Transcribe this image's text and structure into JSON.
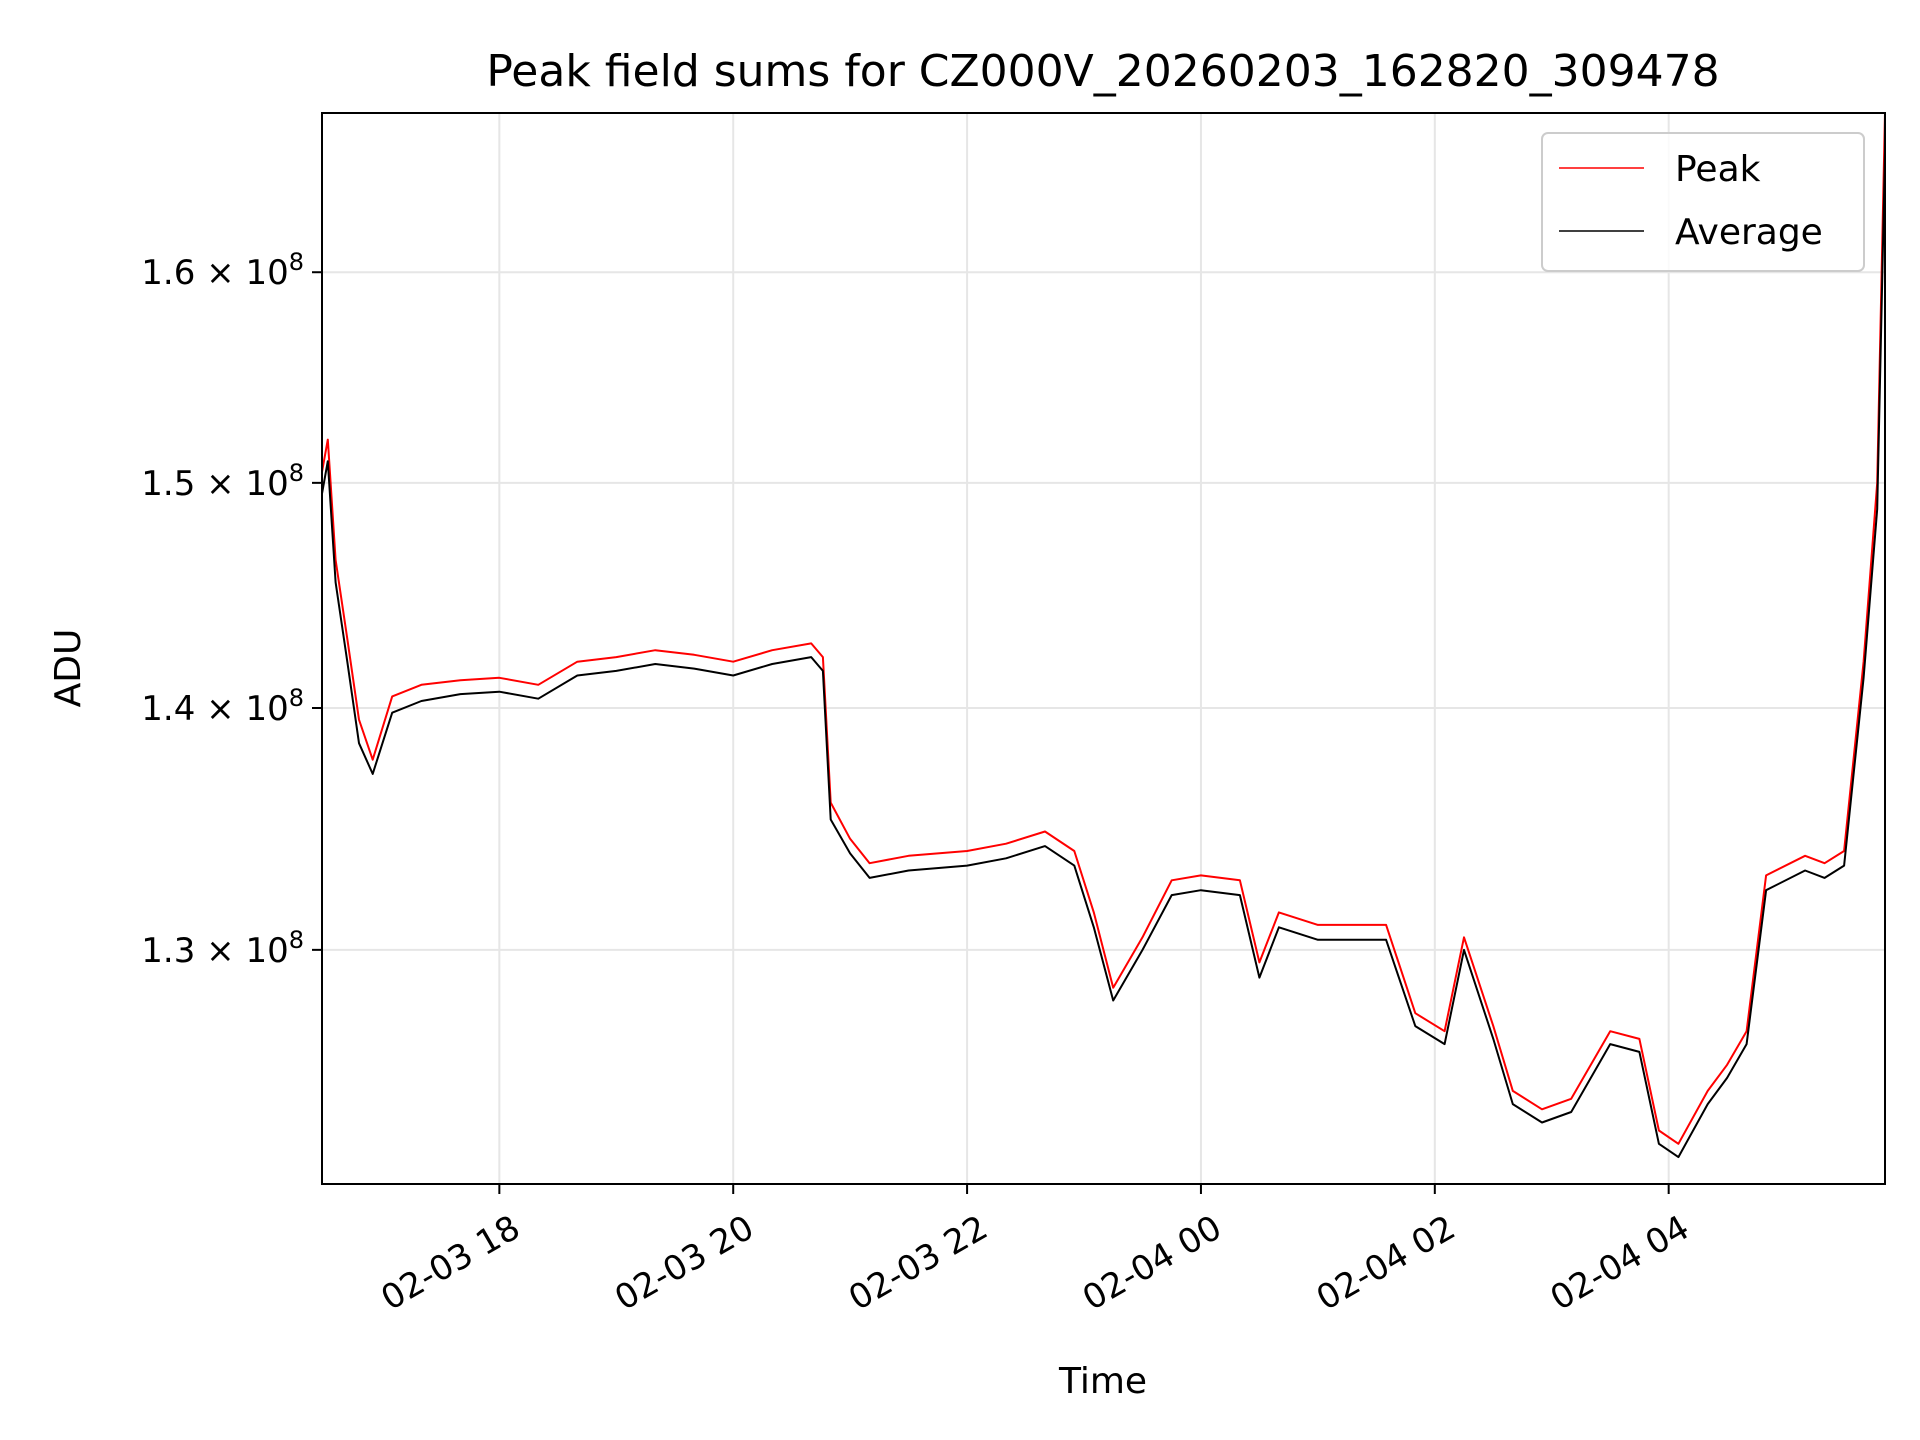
{
  "chart_data": {
    "type": "line",
    "title": "Peak field sums for CZ000V_20260203_162820_309478",
    "xlabel": "Time",
    "ylabel": "ADU",
    "x_ticks": [
      {
        "value": "2026-02-03T18:00",
        "label": "02-03 18"
      },
      {
        "value": "2026-02-03T20:00",
        "label": "02-03 20"
      },
      {
        "value": "2026-02-03T22:00",
        "label": "02-03 22"
      },
      {
        "value": "2026-02-04T00:00",
        "label": "02-04 00"
      },
      {
        "value": "2026-02-04T02:00",
        "label": "02-04 02"
      },
      {
        "value": "2026-02-04T04:00",
        "label": "02-04 04"
      }
    ],
    "y_ticks": [
      {
        "value": 130000000,
        "mantissa": "1.3",
        "exponent": "8"
      },
      {
        "value": 140000000,
        "mantissa": "1.4",
        "exponent": "8"
      },
      {
        "value": 150000000,
        "mantissa": "1.5",
        "exponent": "8"
      },
      {
        "value": 160000000,
        "mantissa": "1.6",
        "exponent": "8"
      }
    ],
    "xlim": [
      "2026-02-03T16:29",
      "2026-02-04T05:51"
    ],
    "ylim": [
      121000000,
      168000000
    ],
    "y_scale": "log",
    "grid": true,
    "legend_position": "top-right",
    "series": [
      {
        "name": "Peak",
        "color": "#ff0000",
        "x": [
          "2026-02-03T16:29",
          "2026-02-03T16:32",
          "2026-02-03T16:36",
          "2026-02-03T16:42",
          "2026-02-03T16:48",
          "2026-02-03T16:55",
          "2026-02-03T17:05",
          "2026-02-03T17:20",
          "2026-02-03T17:40",
          "2026-02-03T18:00",
          "2026-02-03T18:20",
          "2026-02-03T18:40",
          "2026-02-03T19:00",
          "2026-02-03T19:20",
          "2026-02-03T19:40",
          "2026-02-03T20:00",
          "2026-02-03T20:20",
          "2026-02-03T20:40",
          "2026-02-03T20:46",
          "2026-02-03T20:50",
          "2026-02-03T21:00",
          "2026-02-03T21:10",
          "2026-02-03T21:30",
          "2026-02-03T22:00",
          "2026-02-03T22:20",
          "2026-02-03T22:40",
          "2026-02-03T22:55",
          "2026-02-03T23:05",
          "2026-02-03T23:15",
          "2026-02-03T23:30",
          "2026-02-03T23:45",
          "2026-02-04T00:00",
          "2026-02-04T00:20",
          "2026-02-04T00:30",
          "2026-02-04T00:40",
          "2026-02-04T01:00",
          "2026-02-04T01:20",
          "2026-02-04T01:35",
          "2026-02-04T01:50",
          "2026-02-04T02:05",
          "2026-02-04T02:15",
          "2026-02-04T02:30",
          "2026-02-04T02:40",
          "2026-02-04T02:55",
          "2026-02-04T03:10",
          "2026-02-04T03:30",
          "2026-02-04T03:45",
          "2026-02-04T03:55",
          "2026-02-04T04:05",
          "2026-02-04T04:20",
          "2026-02-04T04:30",
          "2026-02-04T04:40",
          "2026-02-04T04:50",
          "2026-02-04T05:10",
          "2026-02-04T05:20",
          "2026-02-04T05:30",
          "2026-02-04T05:40",
          "2026-02-04T05:47",
          "2026-02-04T05:51"
        ],
        "y": [
          150500000,
          152000000,
          146500000,
          143000000,
          139500000,
          137800000,
          140500000,
          141000000,
          141200000,
          141300000,
          141000000,
          142000000,
          142200000,
          142500000,
          142300000,
          142000000,
          142500000,
          142800000,
          142200000,
          136000000,
          134500000,
          133500000,
          133800000,
          134000000,
          134300000,
          134800000,
          134000000,
          131500000,
          128500000,
          130500000,
          132800000,
          133000000,
          132800000,
          129500000,
          131500000,
          131000000,
          131000000,
          131000000,
          127500000,
          126800000,
          130500000,
          127000000,
          124500000,
          123800000,
          124200000,
          126800000,
          126500000,
          123000000,
          122500000,
          124500000,
          125500000,
          126800000,
          133000000,
          133800000,
          133500000,
          134000000,
          142000000,
          150000000,
          168000000
        ]
      },
      {
        "name": "Average",
        "color": "#000000",
        "x": [
          "2026-02-03T16:29",
          "2026-02-03T16:32",
          "2026-02-03T16:36",
          "2026-02-03T16:42",
          "2026-02-03T16:48",
          "2026-02-03T16:55",
          "2026-02-03T17:05",
          "2026-02-03T17:20",
          "2026-02-03T17:40",
          "2026-02-03T18:00",
          "2026-02-03T18:20",
          "2026-02-03T18:40",
          "2026-02-03T19:00",
          "2026-02-03T19:20",
          "2026-02-03T19:40",
          "2026-02-03T20:00",
          "2026-02-03T20:20",
          "2026-02-03T20:40",
          "2026-02-03T20:46",
          "2026-02-03T20:50",
          "2026-02-03T21:00",
          "2026-02-03T21:10",
          "2026-02-03T21:30",
          "2026-02-03T22:00",
          "2026-02-03T22:20",
          "2026-02-03T22:40",
          "2026-02-03T22:55",
          "2026-02-03T23:05",
          "2026-02-03T23:15",
          "2026-02-03T23:30",
          "2026-02-03T23:45",
          "2026-02-04T00:00",
          "2026-02-04T00:20",
          "2026-02-04T00:30",
          "2026-02-04T00:40",
          "2026-02-04T01:00",
          "2026-02-04T01:20",
          "2026-02-04T01:35",
          "2026-02-04T01:50",
          "2026-02-04T02:05",
          "2026-02-04T02:15",
          "2026-02-04T02:30",
          "2026-02-04T02:40",
          "2026-02-04T02:55",
          "2026-02-04T03:10",
          "2026-02-04T03:30",
          "2026-02-04T03:45",
          "2026-02-04T03:55",
          "2026-02-04T04:05",
          "2026-02-04T04:20",
          "2026-02-04T04:30",
          "2026-02-04T04:40",
          "2026-02-04T04:50",
          "2026-02-04T05:10",
          "2026-02-04T05:20",
          "2026-02-04T05:30",
          "2026-02-04T05:40",
          "2026-02-04T05:47",
          "2026-02-04T05:51"
        ],
        "y": [
          149500000,
          151000000,
          145500000,
          142000000,
          138500000,
          137200000,
          139800000,
          140300000,
          140600000,
          140700000,
          140400000,
          141400000,
          141600000,
          141900000,
          141700000,
          141400000,
          141900000,
          142200000,
          141600000,
          135300000,
          133900000,
          132900000,
          133200000,
          133400000,
          133700000,
          134200000,
          133400000,
          130900000,
          128000000,
          130000000,
          132200000,
          132400000,
          132200000,
          128900000,
          130900000,
          130400000,
          130400000,
          130400000,
          127000000,
          126300000,
          130000000,
          126500000,
          124000000,
          123300000,
          123700000,
          126300000,
          126000000,
          122500000,
          122000000,
          124000000,
          125000000,
          126300000,
          132400000,
          133200000,
          132900000,
          133400000,
          141300000,
          148800000,
          166000000
        ]
      }
    ]
  }
}
